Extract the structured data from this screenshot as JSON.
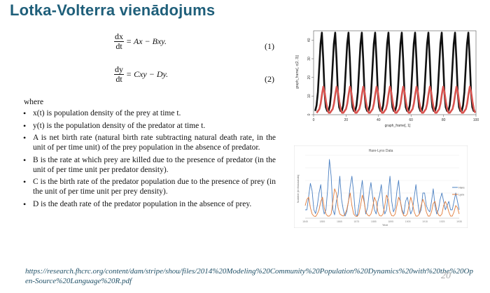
{
  "title": "Lotka-Volterra vienādojums",
  "equations": [
    {
      "num": "dx",
      "den": "dt",
      "rhs": "= Ax − Bxy.",
      "number": "(1)"
    },
    {
      "num": "dy",
      "den": "dt",
      "rhs": "= Cxy − Dy.",
      "number": "(2)"
    }
  ],
  "where": "where",
  "bullets": [
    "x(t) is population density of the prey at time t.",
    "y(t) is the population density of the predator at time t.",
    "A is net birth rate (natural birth rate subtracting natural death rate, in the unit of per time unit) of the prey population in the absence of predator.",
    "B is the rate at which prey are killed due to the presence of predator (in the unit of per time unit per predator density).",
    "C is the birth rate of the predator population due to the presence of prey (in the unit of per time unit per prey density).",
    "D is the death rate of the predator population in the absence of prey."
  ],
  "source_url": "https://research.fhcrc.org/content/dam/stripe/shou/files/2014%20Modeling%20Community%20Population%20Dynamics%20with%20the%20Open-Source%20Language%20R.pdf",
  "page_number": "20",
  "colors": {
    "prey": "#111111",
    "predator": "#d9534f",
    "blue": "#4a7fc1",
    "orange": "#e07b39"
  },
  "chart_data": [
    {
      "type": "line",
      "title": "",
      "xlabel": "graph_frame[, 1]",
      "ylabel": "graph_frame[, c(2, 3)]",
      "xlim": [
        0,
        100
      ],
      "ylim": [
        0,
        45
      ],
      "xticks": [
        "0",
        "20",
        "40",
        "60",
        "80",
        "100"
      ],
      "yticks": [
        "0",
        "10",
        "20",
        "30",
        "40"
      ],
      "series": [
        {
          "values": [
            2,
            5,
            12,
            25,
            38,
            44,
            30,
            12,
            4,
            2
          ]
        },
        {
          "values": [
            1,
            2,
            3,
            6,
            11,
            15,
            12,
            7,
            3,
            1
          ]
        }
      ]
    },
    {
      "type": "line",
      "title": "Hare-Lynx Data",
      "xlabel": "Year",
      "ylabel": "Number (in thousands)",
      "xticks": [
        "1845",
        "1855",
        "1865",
        "1875",
        "1885",
        "1895",
        "1905",
        "1915",
        "1925",
        "1935"
      ],
      "series": [
        {
          "name": "Hare",
          "values": [
            20,
            20,
            52,
            83,
            65,
            20,
            11,
            30,
            60,
            80,
            30,
            10,
            20,
            70,
            140,
            100,
            20,
            8,
            40,
            56,
            100,
            45,
            20,
            5,
            15,
            40,
            76,
            100,
            60,
            10,
            5,
            30,
            60,
            90,
            45,
            10,
            25,
            60,
            85,
            50,
            20,
            10,
            40,
            55,
            80,
            30,
            10,
            20,
            60,
            100,
            40,
            15,
            25,
            65,
            90,
            40,
            20,
            10,
            40,
            50,
            30,
            10,
            20,
            50,
            80,
            40,
            10,
            20,
            60,
            60,
            30,
            20,
            15,
            40,
            70,
            30,
            10,
            20,
            45,
            60,
            40,
            20,
            30,
            40,
            20,
            20,
            40,
            60,
            40,
            20
          ]
        },
        {
          "name": "Lynx",
          "values": [
            30,
            45,
            50,
            25,
            10,
            5,
            4,
            10,
            20,
            40,
            50,
            25,
            10,
            5,
            5,
            10,
            40,
            70,
            60,
            25,
            10,
            7,
            5,
            10,
            20,
            40,
            60,
            30,
            10,
            5,
            4,
            10,
            30,
            55,
            40,
            15,
            8,
            5,
            10,
            25,
            50,
            40,
            15,
            6,
            5,
            10,
            30,
            55,
            45,
            15,
            6,
            5,
            10,
            30,
            50,
            40,
            15,
            6,
            5,
            10,
            30,
            50,
            35,
            15,
            5,
            5,
            10,
            30,
            45,
            35,
            15,
            5,
            5,
            15,
            35,
            40,
            20,
            8,
            5,
            10,
            30,
            40,
            30,
            15,
            5,
            5,
            15,
            30,
            25,
            10
          ]
        }
      ]
    }
  ]
}
